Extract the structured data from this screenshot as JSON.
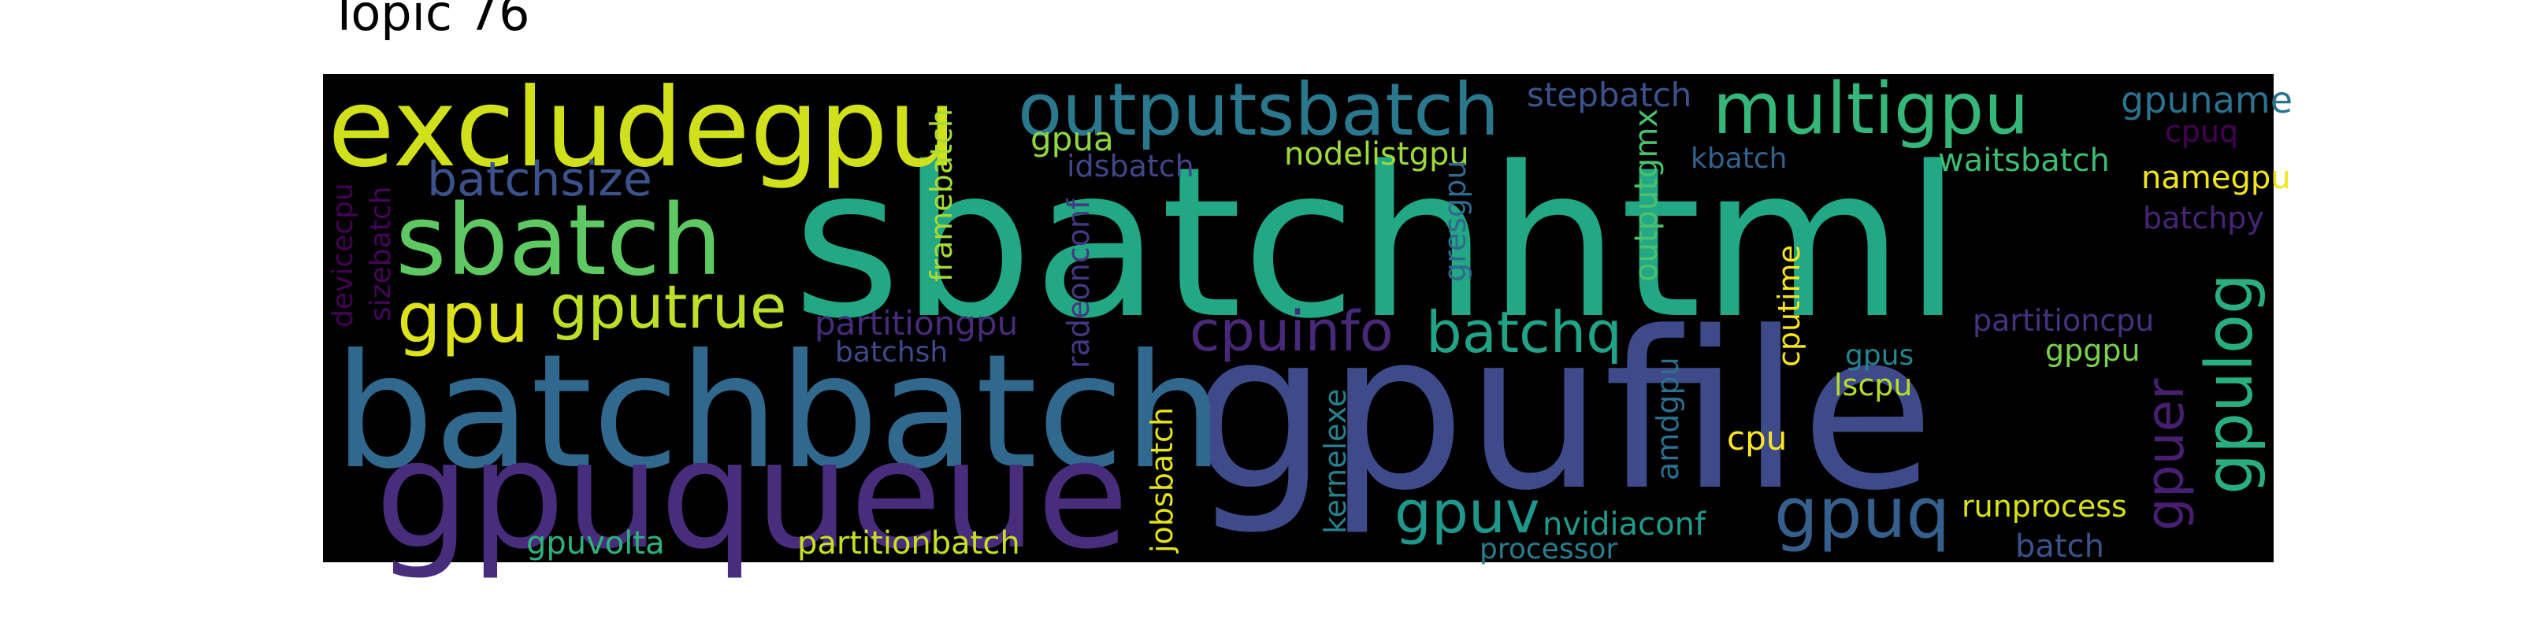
{
  "title": "Topic 76",
  "words": [
    {
      "text": "sbatchhtml",
      "color": "#22a884"
    },
    {
      "text": "gpufile",
      "color": "#3e4a89"
    },
    {
      "text": "batchbatch",
      "color": "#31688e"
    },
    {
      "text": "gpuqueue",
      "color": "#472d7b"
    },
    {
      "text": "excludegpu",
      "color": "#d0e11c"
    },
    {
      "text": "sbatch",
      "color": "#5ec962"
    },
    {
      "text": "outputsbatch",
      "color": "#2a788e"
    },
    {
      "text": "multigpu",
      "color": "#35b779"
    },
    {
      "text": "batchsize",
      "color": "#3b528b"
    },
    {
      "text": "gpu",
      "color": "#dde318"
    },
    {
      "text": "gputrue",
      "color": "#bddf26"
    },
    {
      "text": "cpuinfo",
      "color": "#482878"
    },
    {
      "text": "batchq",
      "color": "#20a386"
    },
    {
      "text": "gpulog",
      "color": "#29af7f"
    },
    {
      "text": "gpuer",
      "color": "#481f70"
    },
    {
      "text": "gpuq",
      "color": "#355f8d"
    },
    {
      "text": "gpuv",
      "color": "#1f988b"
    },
    {
      "text": "stepbatch",
      "color": "#3b528b"
    },
    {
      "text": "gpuname",
      "color": "#2c728e"
    },
    {
      "text": "cpuq",
      "color": "#440154"
    },
    {
      "text": "namegpu",
      "color": "#f1e51d"
    },
    {
      "text": "batchpy",
      "color": "#482475"
    },
    {
      "text": "gpua",
      "color": "#8fd744"
    },
    {
      "text": "idsbatch",
      "color": "#404688"
    },
    {
      "text": "nodelistgpu",
      "color": "#9fda3a"
    },
    {
      "text": "kbatch",
      "color": "#33638d"
    },
    {
      "text": "waitsbatch",
      "color": "#3dbc74"
    },
    {
      "text": "partitiongpu",
      "color": "#472c7a"
    },
    {
      "text": "batchsh",
      "color": "#3e4a89"
    },
    {
      "text": "partitioncpu",
      "color": "#46327e"
    },
    {
      "text": "gpgpu",
      "color": "#7ad151"
    },
    {
      "text": "gpus",
      "color": "#25858e"
    },
    {
      "text": "lscpu",
      "color": "#b5de2b"
    },
    {
      "text": "cpu",
      "color": "#fde725"
    },
    {
      "text": "runprocess",
      "color": "#d8e219"
    },
    {
      "text": "batch",
      "color": "#3b528b"
    },
    {
      "text": "nvidiaconf",
      "color": "#1f9a8a"
    },
    {
      "text": "processor",
      "color": "#287d8e"
    },
    {
      "text": "gpuvolta",
      "color": "#2db27d"
    },
    {
      "text": "partitionbatch",
      "color": "#c8e020"
    },
    {
      "text": "devicecpu",
      "color": "#440154"
    },
    {
      "text": "sizebatch",
      "color": "#450559"
    },
    {
      "text": "framebatch",
      "color": "#a8db34"
    },
    {
      "text": "radeonconf",
      "color": "#453781"
    },
    {
      "text": "jobsbatch",
      "color": "#e5e419"
    },
    {
      "text": "kernelexe",
      "color": "#26818e"
    },
    {
      "text": "amdgpu",
      "color": "#2e6e8e"
    },
    {
      "text": "gresgpu",
      "color": "#31688e"
    },
    {
      "text": "outputgmx",
      "color": "#4ac16d"
    },
    {
      "text": "cputime",
      "color": "#f6e620"
    }
  ]
}
